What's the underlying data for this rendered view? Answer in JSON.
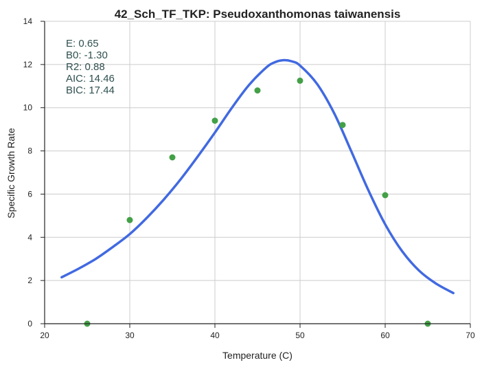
{
  "chart_data": {
    "type": "scatter",
    "title": "42_Sch_TF_TKP: Pseudoxanthomonas taiwanensis",
    "xlabel": "Temperature (C)",
    "ylabel": "Specific Growth Rate",
    "xlim": [
      20,
      70
    ],
    "ylim": [
      0,
      14
    ],
    "xticks": [
      "20",
      "30",
      "40",
      "50",
      "60",
      "70"
    ],
    "yticks": [
      "0",
      "2",
      "4",
      "6",
      "8",
      "10",
      "12",
      "14"
    ],
    "grid": true,
    "points": {
      "color": "#43a047",
      "x": [
        25,
        30,
        35,
        40,
        45,
        50,
        55,
        60,
        65
      ],
      "y": [
        0.0,
        4.8,
        7.7,
        9.4,
        10.8,
        11.25,
        9.2,
        5.95,
        0.0
      ]
    },
    "fit_curve": {
      "color": "#4169e1",
      "x": [
        22,
        24,
        26,
        28,
        30,
        32,
        34,
        36,
        38,
        40,
        42,
        44,
        46,
        47,
        48,
        49,
        50,
        52,
        54,
        56,
        58,
        60,
        62,
        64,
        66,
        68
      ],
      "y": [
        2.15,
        2.55,
        3.0,
        3.55,
        4.15,
        4.9,
        5.75,
        6.7,
        7.75,
        8.85,
        10.0,
        11.05,
        11.85,
        12.1,
        12.2,
        12.15,
        11.95,
        11.1,
        9.75,
        8.0,
        6.2,
        4.6,
        3.35,
        2.45,
        1.85,
        1.42
      ]
    },
    "annotations": {
      "color": "#2f4f4f",
      "lines": [
        "E:  0.65",
        "B0:  -1.30",
        "R2:  0.88",
        "AIC: 14.46",
        "BIC: 17.44"
      ]
    }
  }
}
